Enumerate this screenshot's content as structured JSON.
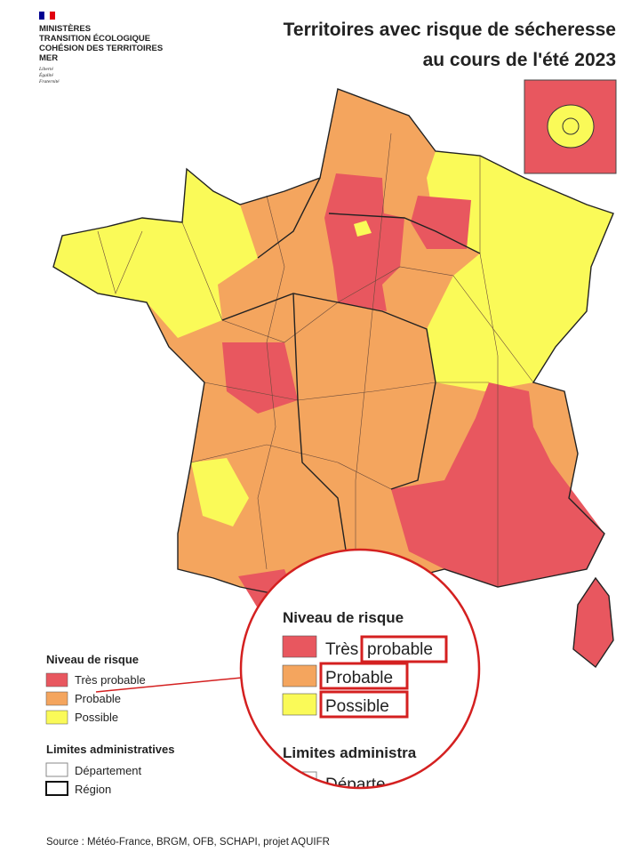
{
  "header": {
    "ministry": [
      "MINISTÈRES",
      "TRANSITION ÉCOLOGIQUE",
      "COHÉSION DES TERRITOIRES",
      "MER"
    ],
    "motto": [
      "Liberté",
      "Égalité",
      "Fraternité"
    ],
    "title": [
      "Territoires avec risque de sécheresse",
      "au cours de l'été 2023"
    ]
  },
  "legend": {
    "title": "Niveau de risque",
    "items": [
      {
        "label": "Très probable",
        "color": "#e8575f"
      },
      {
        "label": "Probable",
        "color": "#f4a55e"
      },
      {
        "label": "Possible",
        "color": "#fafa58"
      }
    ]
  },
  "limits": {
    "title": "Limites administratives",
    "items": [
      "Département",
      "Région"
    ]
  },
  "zoom": {
    "title": "Niveau de risque",
    "items": [
      [
        "Très",
        "probable"
      ],
      [
        "Probable"
      ],
      [
        "Possible"
      ]
    ],
    "limits": "Limites administra",
    "limit_item": "Départe"
  },
  "footer": {
    "source": "Source : Météo-France, BRGM, OFB, SCHAPI, projet AQUIFR"
  }
}
